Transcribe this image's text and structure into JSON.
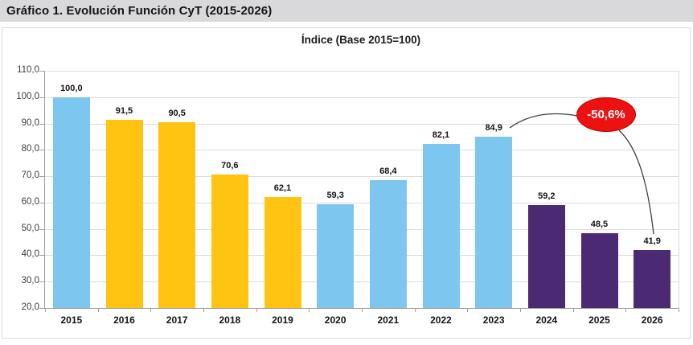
{
  "page": {
    "header_title": "Gráfico 1. Evolución Función CyT (2015-2026)"
  },
  "chart_data": {
    "type": "bar",
    "title": "Índice (Base 2015=100)",
    "categories": [
      "2015",
      "2016",
      "2017",
      "2018",
      "2019",
      "2020",
      "2021",
      "2022",
      "2023",
      "2024",
      "2025",
      "2026"
    ],
    "values": [
      100.0,
      91.5,
      90.5,
      70.6,
      62.1,
      59.3,
      68.4,
      82.1,
      84.9,
      59.2,
      48.5,
      41.9
    ],
    "value_labels": [
      "100,0",
      "91,5",
      "90,5",
      "70,6",
      "62,1",
      "59,3",
      "68,4",
      "82,1",
      "84,9",
      "59,2",
      "48,5",
      "41,9"
    ],
    "bar_color_keys": [
      "blue",
      "yellow",
      "yellow",
      "yellow",
      "yellow",
      "blue",
      "blue",
      "blue",
      "blue",
      "purple",
      "purple",
      "purple"
    ],
    "palette": {
      "blue": "#7cc6f0",
      "yellow": "#ffc411",
      "purple": "#4b2a73"
    },
    "y_axis": {
      "min": 20,
      "max": 110,
      "step": 10,
      "tick_labels": [
        "20,0",
        "30,0",
        "40,0",
        "50,0",
        "60,0",
        "70,0",
        "80,0",
        "90,0",
        "100,0",
        "110,0"
      ]
    },
    "grid": true,
    "legend": "none",
    "annotation": {
      "text": "-50,6%",
      "fill_color": "#ee1111",
      "border_color": "#c00000",
      "text_color": "#ffffff",
      "line_color": "#3f3f3f",
      "from_label": "84,9",
      "to_label": "41,9"
    }
  }
}
